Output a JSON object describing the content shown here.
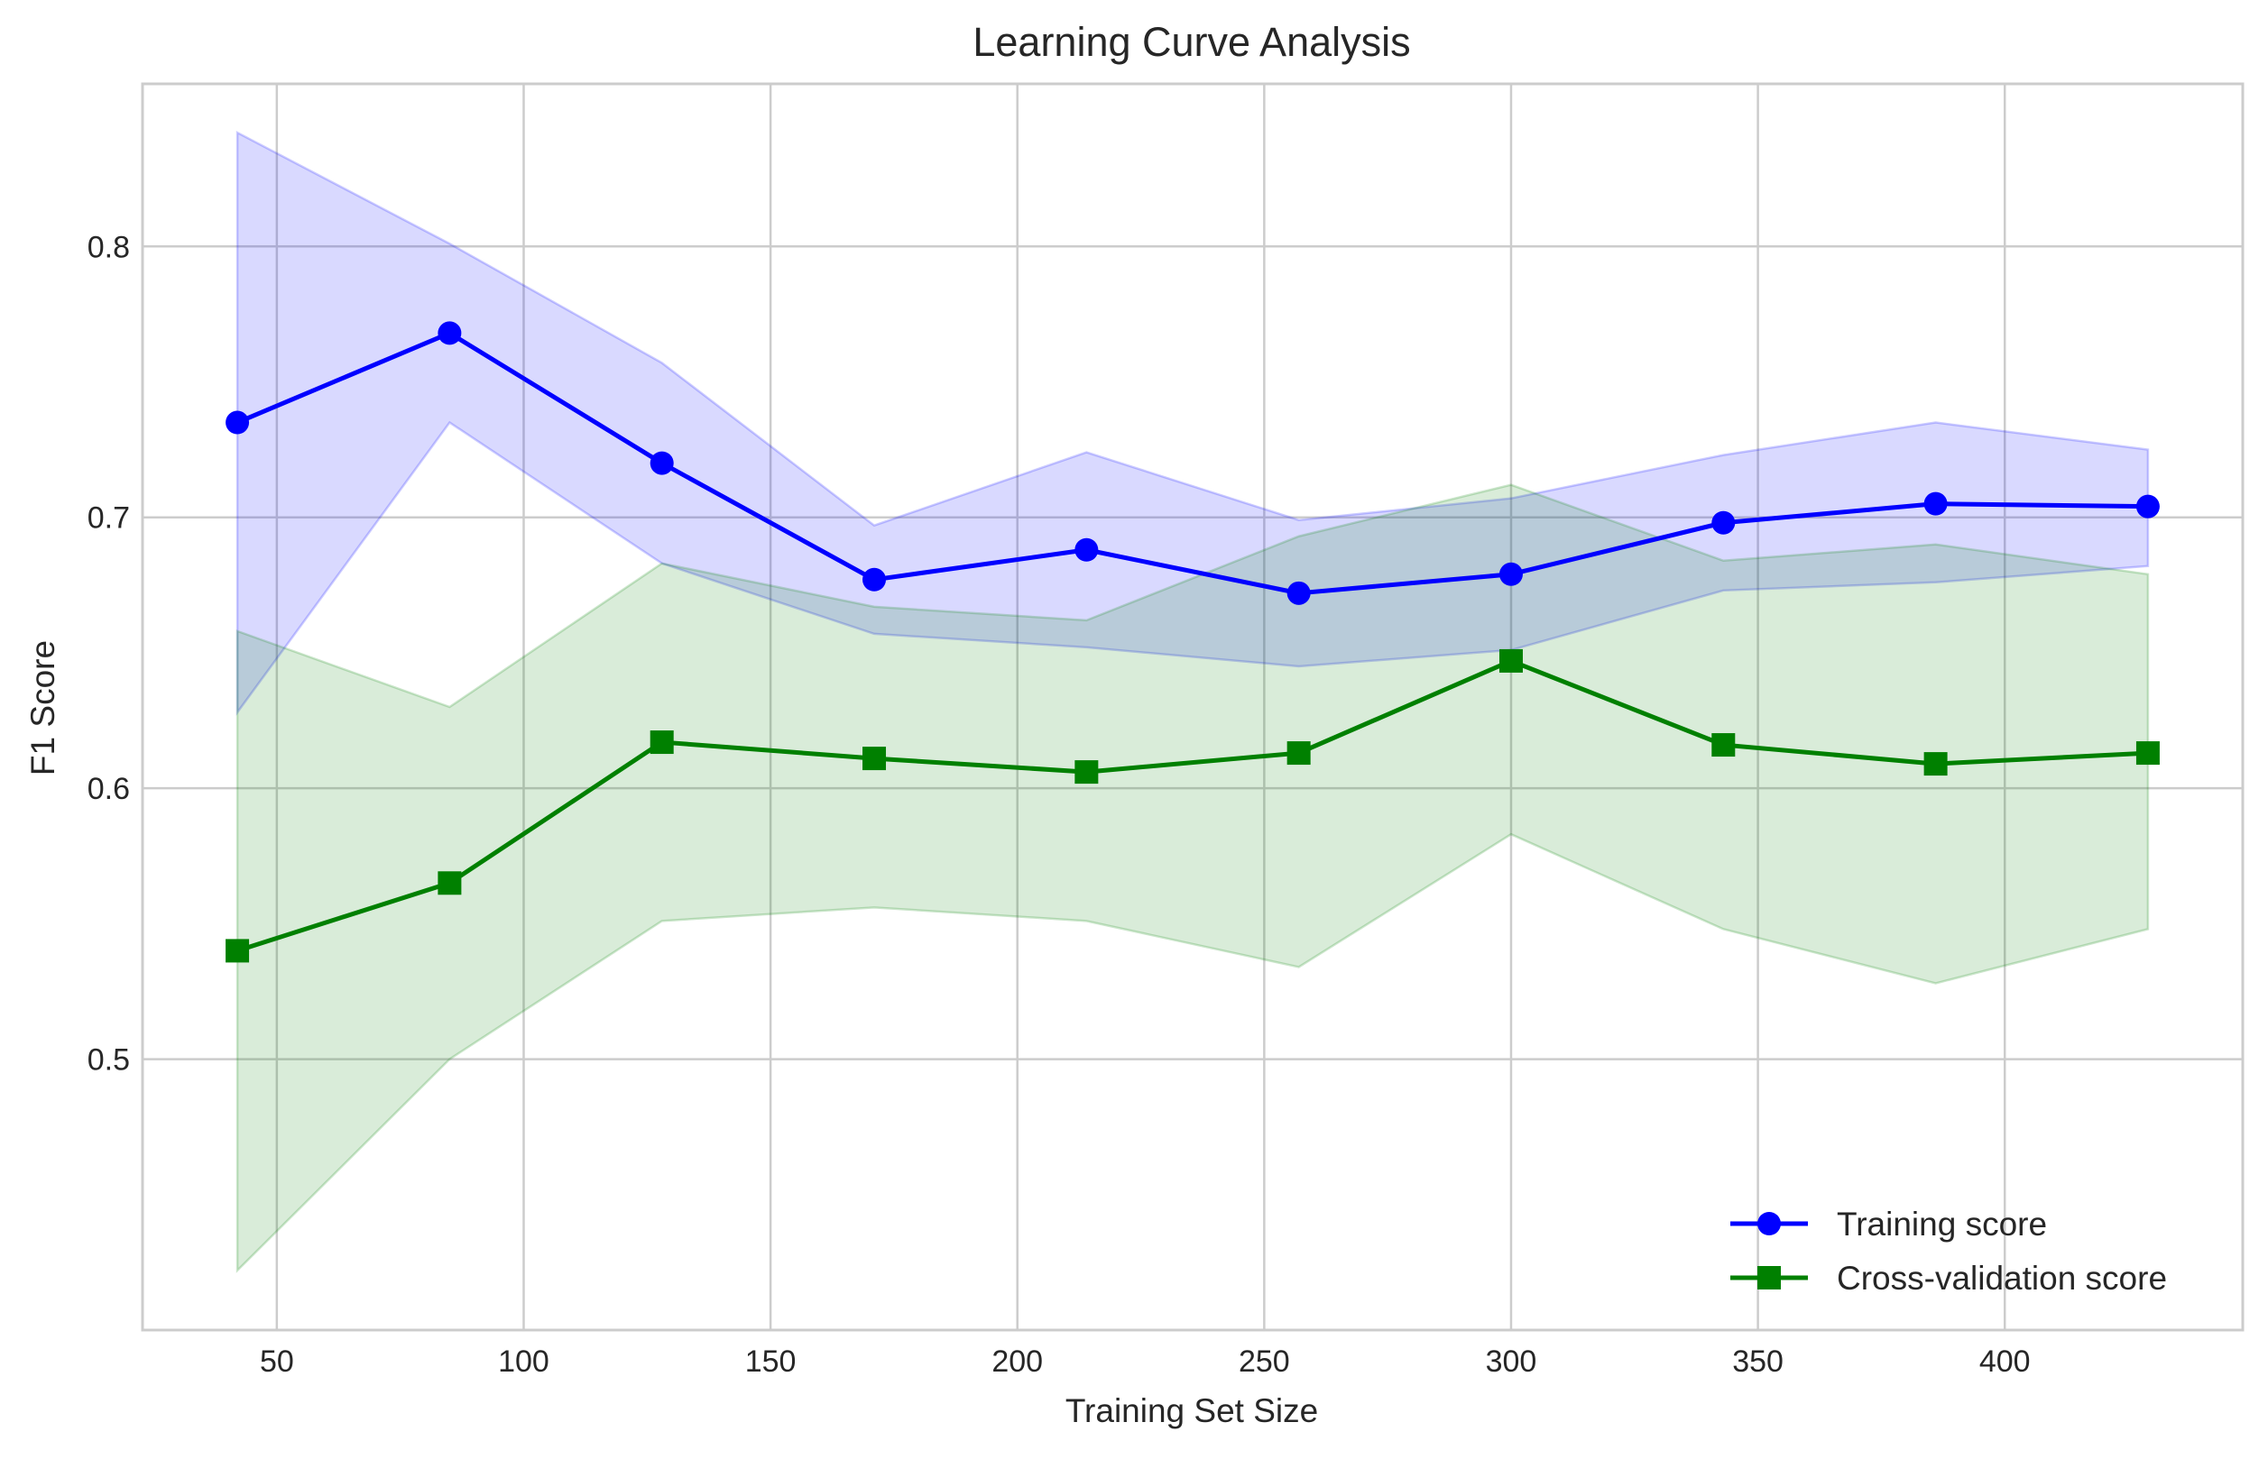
{
  "chart_data": {
    "type": "line",
    "title": "Learning Curve Analysis",
    "xlabel": "Training Set Size",
    "ylabel": "F1 Score",
    "xlim": [
      22.8,
      448.2
    ],
    "ylim": [
      0.4,
      0.86
    ],
    "xticks": [
      50,
      100,
      150,
      200,
      250,
      300,
      350,
      400
    ],
    "yticks": [
      0.5,
      0.6,
      0.7,
      0.8
    ],
    "xtick_labels": [
      "50",
      "100",
      "150",
      "200",
      "250",
      "300",
      "350",
      "400"
    ],
    "ytick_labels": [
      "0.5",
      "0.6",
      "0.7",
      "0.8"
    ],
    "grid": true,
    "legend_position": "lower-right",
    "x": [
      42,
      85,
      128,
      171,
      214,
      257,
      300,
      343,
      386,
      429
    ],
    "series": [
      {
        "name": "Training score",
        "color": "#0000ff",
        "marker": "circle",
        "values": [
          0.735,
          0.768,
          0.72,
          0.677,
          0.688,
          0.672,
          0.679,
          0.698,
          0.705,
          0.704
        ],
        "upper": [
          0.842,
          0.801,
          0.757,
          0.697,
          0.724,
          0.699,
          0.707,
          0.723,
          0.735,
          0.725
        ],
        "lower": [
          0.628,
          0.735,
          0.683,
          0.657,
          0.652,
          0.645,
          0.651,
          0.673,
          0.676,
          0.682
        ]
      },
      {
        "name": "Cross-validation score",
        "color": "#008000",
        "marker": "square",
        "values": [
          0.54,
          0.565,
          0.617,
          0.611,
          0.606,
          0.613,
          0.647,
          0.616,
          0.609,
          0.613
        ],
        "upper": [
          0.658,
          0.63,
          0.683,
          0.667,
          0.662,
          0.693,
          0.712,
          0.684,
          0.69,
          0.679
        ],
        "lower": [
          0.422,
          0.5,
          0.551,
          0.556,
          0.551,
          0.534,
          0.583,
          0.548,
          0.528,
          0.548
        ]
      }
    ]
  }
}
